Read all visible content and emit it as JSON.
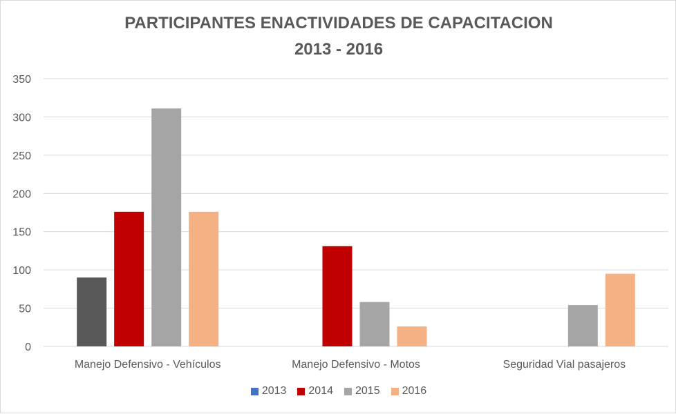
{
  "chart_data": {
    "type": "bar",
    "title": "PARTICIPANTES ENACTIVIDADES DE CAPACITACION",
    "subtitle": "2013 - 2016",
    "categories": [
      "Manejo Defensivo - Vehículos",
      "Manejo Defensivo - Motos",
      "Seguridad Vial pasajeros"
    ],
    "series": [
      {
        "name": "2013",
        "color": "#4472c4",
        "values": [
          90,
          null,
          null
        ]
      },
      {
        "name": "2014",
        "color": "#c00000",
        "values": [
          176,
          131,
          null
        ]
      },
      {
        "name": "2015",
        "color": "#a5a5a5",
        "values": [
          311,
          58,
          54
        ]
      },
      {
        "name": "2016",
        "color": "#f4b183",
        "values": [
          176,
          26,
          95
        ]
      }
    ],
    "bar_color_overrides": [
      {
        "series": 0,
        "category": 0,
        "color": "#595959"
      }
    ],
    "ylim": [
      0,
      350
    ],
    "yticks": [
      0,
      50,
      100,
      150,
      200,
      250,
      300,
      350
    ],
    "grid": true,
    "legend": "bottom",
    "xlabel": "",
    "ylabel": ""
  }
}
